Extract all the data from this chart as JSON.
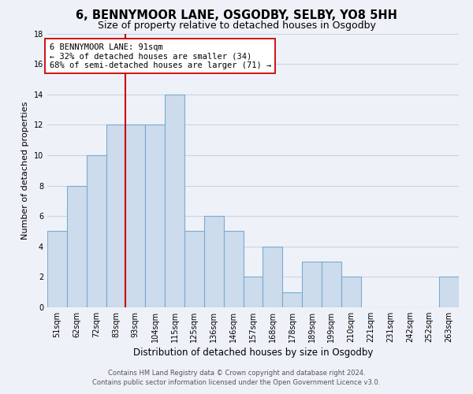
{
  "title": "6, BENNYMOOR LANE, OSGODBY, SELBY, YO8 5HH",
  "subtitle": "Size of property relative to detached houses in Osgodby",
  "xlabel": "Distribution of detached houses by size in Osgodby",
  "ylabel": "Number of detached properties",
  "bar_labels": [
    "51sqm",
    "62sqm",
    "72sqm",
    "83sqm",
    "93sqm",
    "104sqm",
    "115sqm",
    "125sqm",
    "136sqm",
    "146sqm",
    "157sqm",
    "168sqm",
    "178sqm",
    "189sqm",
    "199sqm",
    "210sqm",
    "221sqm",
    "231sqm",
    "242sqm",
    "252sqm",
    "263sqm"
  ],
  "bar_values": [
    5,
    8,
    10,
    12,
    12,
    12,
    14,
    5,
    6,
    5,
    2,
    4,
    1,
    3,
    3,
    2,
    0,
    0,
    0,
    0,
    2
  ],
  "bar_color": "#ccdcec",
  "bar_edge_color": "#7aaad0",
  "vline_color": "#cc0000",
  "annotation_lines": [
    "6 BENNYMOOR LANE: 91sqm",
    "← 32% of detached houses are smaller (34)",
    "68% of semi-detached houses are larger (71) →"
  ],
  "annotation_box_color": "#ffffff",
  "annotation_box_edge_color": "#cc0000",
  "ylim": [
    0,
    18
  ],
  "yticks": [
    0,
    2,
    4,
    6,
    8,
    10,
    12,
    14,
    16,
    18
  ],
  "grid_color": "#c8d4e4",
  "background_color": "#eef2f8",
  "footer_lines": [
    "Contains HM Land Registry data © Crown copyright and database right 2024.",
    "Contains public sector information licensed under the Open Government Licence v3.0."
  ],
  "title_fontsize": 10.5,
  "subtitle_fontsize": 9,
  "xlabel_fontsize": 8.5,
  "ylabel_fontsize": 8,
  "tick_fontsize": 7,
  "footer_fontsize": 6,
  "ann_fontsize": 7.5
}
